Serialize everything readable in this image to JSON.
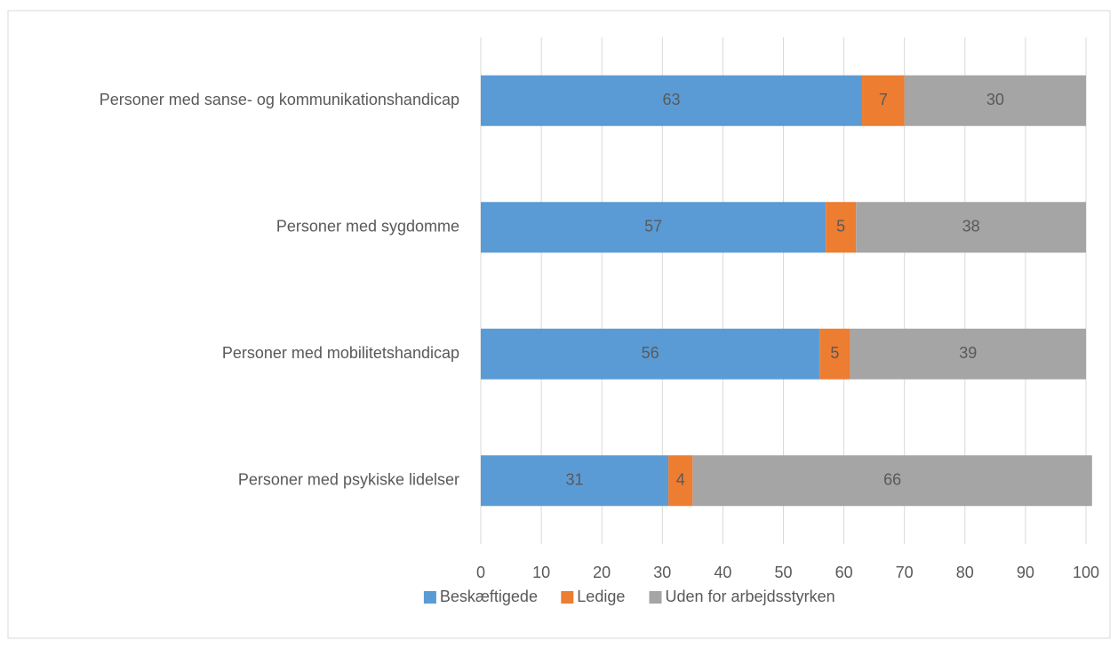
{
  "chart_data": {
    "type": "stacked_bar_horizontal",
    "categories": [
      "Personer med sanse- og kommunikationshandicap",
      "Personer med sygdomme",
      "Personer med mobilitetshandicap",
      "Personer med psykiske lidelser"
    ],
    "series": [
      {
        "name": "Beskæftigede",
        "color": "#5b9bd5",
        "values": [
          63,
          57,
          56,
          31
        ]
      },
      {
        "name": "Ledige",
        "color": "#ed7d31",
        "values": [
          7,
          5,
          5,
          4
        ]
      },
      {
        "name": "Uden for arbejdsstyrken",
        "color": "#a5a5a5",
        "values": [
          30,
          38,
          39,
          66
        ]
      }
    ],
    "xlim": [
      0,
      100
    ],
    "xticks": [
      0,
      10,
      20,
      30,
      40,
      50,
      60,
      70,
      80,
      90,
      100
    ],
    "grid": true,
    "legend": "bottom"
  }
}
